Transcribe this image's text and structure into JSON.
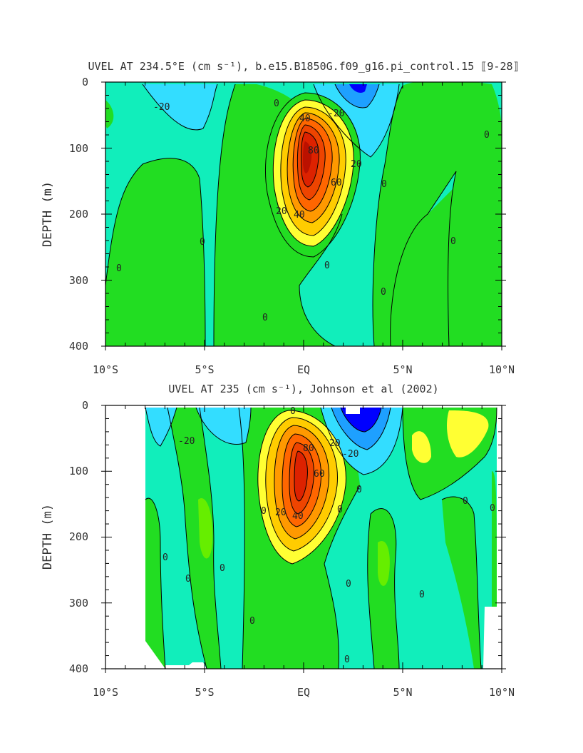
{
  "chart_data": [
    {
      "type": "heatmap",
      "title": "UVEL AT 234.5°E (cm s⁻¹), b.e15.B1850G.f09_g16.pi_control.15 ⟦9-28⟧",
      "ylabel": "DEPTH (m)",
      "xlabel": "",
      "xlim": [
        -10,
        10
      ],
      "ylim": [
        400,
        0
      ],
      "x_ticks": [
        "10°S",
        "5°S",
        "EQ",
        "5°N",
        "10°N"
      ],
      "y_ticks": [
        "0",
        "100",
        "200",
        "300",
        "400"
      ],
      "contour_labels": [
        "-20",
        "-20",
        "0",
        "0",
        "0",
        "0",
        "0",
        "0",
        "0",
        "0",
        "0",
        "20",
        "20",
        "40",
        "40",
        "60",
        "80"
      ],
      "undercurrent_core": {
        "lat": 0,
        "depth_m": 110,
        "max_speed": 80
      },
      "colors": {
        "neg_strong": "#0000ff",
        "neg": "#1ea0ff",
        "neg_weak": "#33ddff",
        "near_zero": "#11eebb",
        "pos_weak": "#22dd22",
        "pos": "#ffff33",
        "core": "#dd2200"
      }
    },
    {
      "type": "heatmap",
      "title": "UVEL AT 235 (cm s⁻¹), Johnson et al (2002)",
      "ylabel": "DEPTH (m)",
      "xlabel": "",
      "xlim": [
        -10,
        10
      ],
      "ylim": [
        400,
        0
      ],
      "x_ticks": [
        "10°S",
        "5°S",
        "EQ",
        "5°N",
        "10°N"
      ],
      "y_ticks": [
        "0",
        "100",
        "200",
        "300",
        "400"
      ],
      "contour_labels": [
        "-20",
        "-20",
        "0",
        "0",
        "0",
        "0",
        "0",
        "0",
        "0",
        "0",
        "0",
        "0",
        "0",
        "0",
        "0",
        "20",
        "20",
        "40",
        "60",
        "80"
      ],
      "undercurrent_core": {
        "lat": 0,
        "depth_m": 90,
        "max_speed": 80
      },
      "colors": {
        "neg_strong": "#0000ff",
        "neg": "#1ea0ff",
        "neg_weak": "#33ddff",
        "near_zero": "#11eebb",
        "pos_weak": "#22dd22",
        "pos": "#ffff33",
        "core": "#dd2200"
      }
    }
  ]
}
